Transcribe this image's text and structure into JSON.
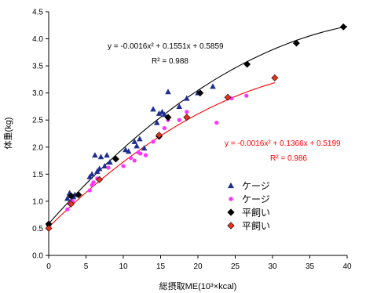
{
  "chart_data": {
    "type": "scatter",
    "xlabel": "総摂取ME(10³×kcal)",
    "ylabel": "体重(kg)",
    "xlim": [
      0,
      40
    ],
    "ylim": [
      0,
      4.5
    ],
    "x_ticks": [
      "0",
      "5",
      "10",
      "15",
      "20",
      "25",
      "30",
      "35",
      "40"
    ],
    "y_ticks": [
      "0.0",
      "0.5",
      "1.0",
      "1.5",
      "2.0",
      "2.5",
      "3.0",
      "3.5",
      "4.0",
      "4.5"
    ],
    "grid": false,
    "legend_position": "lower-right",
    "series": [
      {
        "name": "ケージ",
        "marker": "triangle",
        "color": "#1f2f8f",
        "points": [
          [
            0,
            0.58
          ],
          [
            2.5,
            1.05
          ],
          [
            2.8,
            1.15
          ],
          [
            3.0,
            1.1
          ],
          [
            3.3,
            1.08
          ],
          [
            3.5,
            1.12
          ],
          [
            5.5,
            1.45
          ],
          [
            5.8,
            1.5
          ],
          [
            6.2,
            1.85
          ],
          [
            6.5,
            1.55
          ],
          [
            6.8,
            1.6
          ],
          [
            7.0,
            1.82
          ],
          [
            7.5,
            1.65
          ],
          [
            7.8,
            1.85
          ],
          [
            8.2,
            1.72
          ],
          [
            10.3,
            1.95
          ],
          [
            10.7,
            1.92
          ],
          [
            11.5,
            2.1
          ],
          [
            11.8,
            2.02
          ],
          [
            12.2,
            2.15
          ],
          [
            12.8,
            1.98
          ],
          [
            14.0,
            2.7
          ],
          [
            14.5,
            2.45
          ],
          [
            14.8,
            2.62
          ],
          [
            15.2,
            2.65
          ],
          [
            15.5,
            2.6
          ],
          [
            16.0,
            3.02
          ],
          [
            17.5,
            2.75
          ],
          [
            18.5,
            2.9
          ],
          [
            20.0,
            3.0
          ],
          [
            22.0,
            3.12
          ]
        ]
      },
      {
        "name": "ケージ",
        "marker": "circle",
        "color": "#ff33ff",
        "points": [
          [
            0,
            0.5
          ],
          [
            2.5,
            0.85
          ],
          [
            2.8,
            0.95
          ],
          [
            3.2,
            1.0
          ],
          [
            5.5,
            1.2
          ],
          [
            5.8,
            1.3
          ],
          [
            6.0,
            1.35
          ],
          [
            6.5,
            1.42
          ],
          [
            8.0,
            1.62
          ],
          [
            10.0,
            1.65
          ],
          [
            11.0,
            1.8
          ],
          [
            11.5,
            1.75
          ],
          [
            12.0,
            1.9
          ],
          [
            12.3,
            1.88
          ],
          [
            13.0,
            1.85
          ],
          [
            14.0,
            2.1
          ],
          [
            14.8,
            2.18
          ],
          [
            15.5,
            2.35
          ],
          [
            16.0,
            2.5
          ],
          [
            17.5,
            2.5
          ],
          [
            18.5,
            2.65
          ],
          [
            22.5,
            2.45
          ],
          [
            24.5,
            2.9
          ],
          [
            26.5,
            2.95
          ]
        ]
      },
      {
        "name": "平飼い",
        "marker": "diamond",
        "color": "#000000",
        "points": [
          [
            0,
            0.58
          ],
          [
            3.0,
            1.1
          ],
          [
            4.0,
            1.12
          ],
          [
            9.0,
            1.78
          ],
          [
            14.8,
            2.2
          ],
          [
            16.0,
            2.55
          ],
          [
            20.3,
            3.0
          ],
          [
            26.6,
            3.53
          ],
          [
            33.2,
            3.92
          ],
          [
            39.5,
            4.22
          ]
        ]
      },
      {
        "name": "平飼い",
        "marker": "diamond",
        "color": "#e8331c",
        "points": [
          [
            0,
            0.5
          ],
          [
            3.0,
            0.95
          ],
          [
            6.8,
            1.4
          ],
          [
            14.8,
            2.22
          ],
          [
            18.5,
            2.55
          ],
          [
            24.0,
            2.92
          ],
          [
            30.3,
            3.28
          ]
        ]
      }
    ],
    "trendlines": [
      {
        "color": "#000000",
        "a": -0.0016,
        "b": 0.1551,
        "c": 0.5859,
        "x_range": [
          0,
          40
        ],
        "equation": "y = -0.0016x² + 0.1551x + 0.5859",
        "r2": "R² = 0.988"
      },
      {
        "color": "#ff0000",
        "a": -0.0016,
        "b": 0.1366,
        "c": 0.5199,
        "x_range": [
          0,
          30.3
        ],
        "equation": "y = -0.0016x² + 0.1366x + 0.5199",
        "r2": "R² = 0.986"
      }
    ]
  }
}
